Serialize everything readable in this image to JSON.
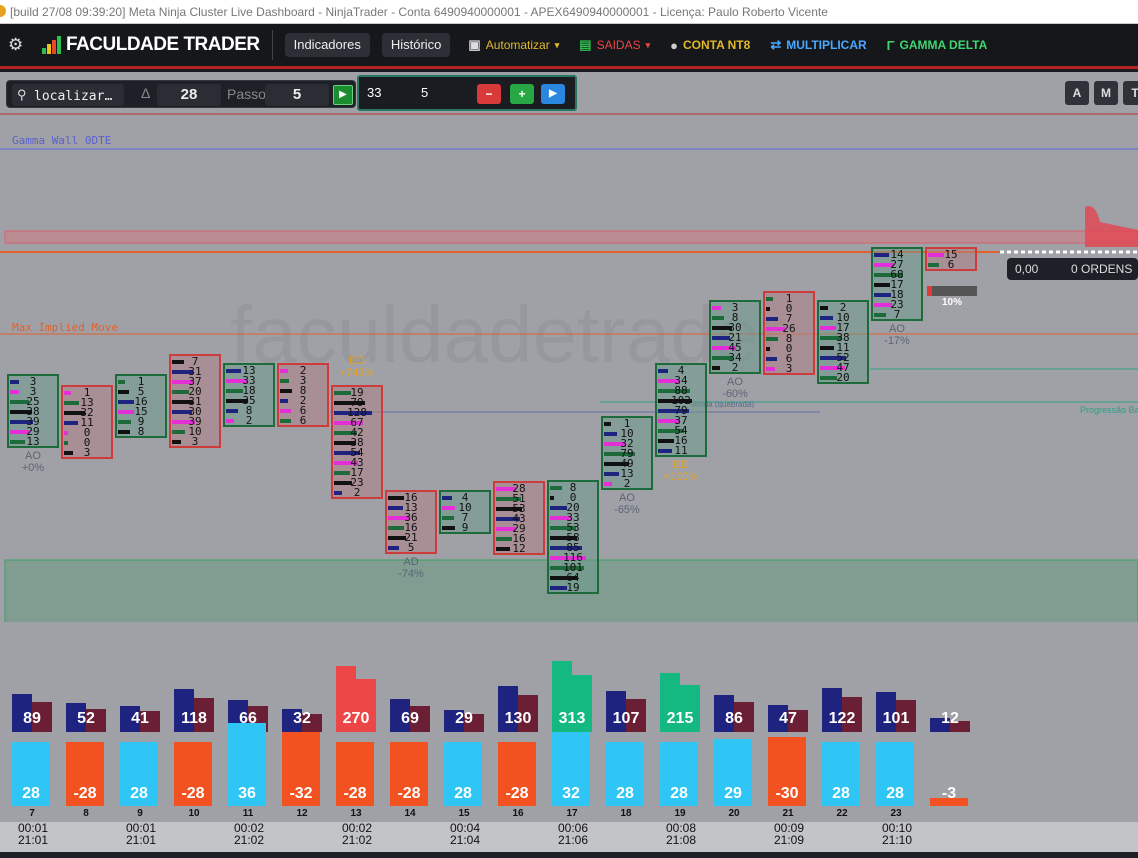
{
  "window_title": "[build 27/08 09:39:20]  Meta Ninja Cluster Live Dashboard - NinjaTrader - Conta 6490940000001 - APEX6490940000001 - Licença: Paulo Roberto Vicente",
  "toolbar": {
    "brand": "FACULDADE TRADER",
    "indicadores": "Indicadores",
    "historico": "Histórico",
    "automatizar": "Automatizar",
    "saidas": "SAIDAS",
    "conta": "CONTA NT8",
    "multiplicar": "MULTIPLICAR",
    "gamma": "GAMMA DELTA",
    "caret": "▾"
  },
  "controls": {
    "search_value": "localizar…",
    "delta_symbol": "Δ",
    "delta_value": "28",
    "passo_label": "Passo",
    "passo_value": "5",
    "play": "▶",
    "qty1": "33",
    "qty2": "5",
    "minus": "−",
    "plus": "+",
    "arrow": "▶",
    "side_buttons": [
      "A",
      "M",
      "T"
    ]
  },
  "chart_overlay": {
    "watermark": "faculdadetrader",
    "gamma_label": "Gamma Wall 0DTE",
    "max_move_label": "Max Implied Move",
    "venda_label": "Venda (quebrada)",
    "progressao_label": "Progressão Bai",
    "orders_value": "0,00",
    "orders_label": "0 ORDENS",
    "pct_label": "10%"
  },
  "colors": {
    "buy": "#1f2380",
    "sell": "#6b1f35",
    "positive_delta": "#2fc6f5",
    "negative_delta": "#f25220",
    "volume_green": "#13b981",
    "volume_red": "#ec4646",
    "cell_green_border": "#1d6b3b",
    "cell_red_border": "#cd3b3b"
  },
  "candles": [
    {
      "values": [
        "3",
        "3",
        "25",
        "38",
        "39",
        "29",
        "13"
      ],
      "color": "green",
      "ann": "AO",
      "ann_pct": "+0%"
    },
    {
      "values": [
        "1",
        "13",
        "32",
        "11",
        "0",
        "0",
        "3"
      ],
      "color": "red"
    },
    {
      "values": [
        "1",
        "5",
        "16",
        "15",
        "9",
        "8"
      ],
      "color": "green"
    },
    {
      "values": [
        "7",
        "31",
        "37",
        "20",
        "31",
        "30",
        "39",
        "10",
        "3"
      ],
      "color": "red"
    },
    {
      "values": [
        "13",
        "33",
        "18",
        "35",
        "8",
        "2"
      ],
      "color": "green"
    },
    {
      "values": [
        "2",
        "3",
        "8",
        "2",
        "6",
        "6"
      ],
      "color": "red"
    },
    {
      "values": [
        "19",
        "79",
        "128",
        "67",
        "42",
        "38",
        "54",
        "43",
        "17",
        "23",
        "2"
      ],
      "color": "red",
      "ann": "EO",
      "ann_pct": "+743%"
    },
    {
      "values": [
        "16",
        "13",
        "36",
        "16",
        "21",
        "5"
      ],
      "color": "red",
      "ann": "AD",
      "ann_pct": "-74%"
    },
    {
      "values": [
        "4",
        "10",
        "7",
        "9"
      ],
      "color": "green"
    },
    {
      "values": [
        "28",
        "51",
        "53",
        "43",
        "29",
        "16",
        "12"
      ],
      "color": "red"
    },
    {
      "values": [
        "8",
        "0",
        "20",
        "33",
        "53",
        "58",
        "85",
        "116",
        "101",
        "64",
        "19"
      ],
      "color": "green"
    },
    {
      "values": [
        "1",
        "10",
        "32",
        "79",
        "49",
        "13",
        "2"
      ],
      "color": "green",
      "ann": "AO",
      "ann_pct": "-65%"
    },
    {
      "values": [
        "4",
        "34",
        "88",
        "102",
        "79",
        "37",
        "54",
        "16",
        "11"
      ],
      "color": "green",
      "ann": "ED",
      "ann_pct": "+100%"
    },
    {
      "values": [
        "3",
        "8",
        "30",
        "21",
        "45",
        "34",
        "2"
      ],
      "color": "green",
      "ann": "AO",
      "ann_pct": "-60%"
    },
    {
      "values": [
        "1",
        "0",
        "7",
        "26",
        "8",
        "0",
        "6",
        "3"
      ],
      "color": "red"
    },
    {
      "values": [
        "2",
        "10",
        "17",
        "38",
        "11",
        "52",
        "47",
        "20"
      ],
      "color": "green"
    },
    {
      "values": [
        "14",
        "27",
        "68",
        "17",
        "18",
        "23",
        "7"
      ],
      "color": "green",
      "ann": "AO",
      "ann_pct": "-17%"
    },
    {
      "values": [
        "15",
        "6"
      ],
      "color": "red"
    }
  ],
  "volume": {
    "totals": [
      "89",
      "52",
      "41",
      "118",
      "66",
      "32",
      "270",
      "69",
      "29",
      "130",
      "313",
      "107",
      "215",
      "86",
      "47",
      "122",
      "101",
      "12"
    ],
    "deltas": [
      "28",
      "-28",
      "28",
      "-28",
      "36",
      "-32",
      "-28",
      "-28",
      "28",
      "-28",
      "32",
      "28",
      "28",
      "29",
      "-30",
      "28",
      "28",
      "-3"
    ]
  },
  "x_axis": {
    "indexes": [
      "7",
      "8",
      "9",
      "10",
      "11",
      "12",
      "13",
      "14",
      "15",
      "16",
      "17",
      "18",
      "19",
      "20",
      "21",
      "22",
      "23"
    ],
    "times": [
      {
        "top": "00:01",
        "bottom": "21:01"
      },
      {
        "top": "00:01",
        "bottom": "21:01"
      },
      {
        "top": "00:02",
        "bottom": "21:02"
      },
      {
        "top": "00:02",
        "bottom": "21:02"
      },
      {
        "top": "00:04",
        "bottom": "21:04"
      },
      {
        "top": "00:06",
        "bottom": "21:06"
      },
      {
        "top": "00:08",
        "bottom": "21:08"
      },
      {
        "top": "00:09",
        "bottom": "21:09"
      },
      {
        "top": "00:10",
        "bottom": "21:10"
      }
    ]
  }
}
